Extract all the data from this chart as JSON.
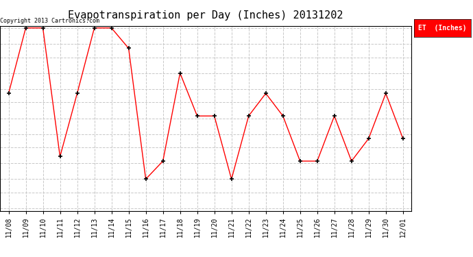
{
  "title": "Evapotranspiration per Day (Inches) 20131202",
  "copyright_text": "Copyright 2013 Cartronics.com",
  "legend_label": "ET  (Inches)",
  "x_labels": [
    "11/08",
    "11/09",
    "11/10",
    "11/11",
    "11/12",
    "11/13",
    "11/14",
    "11/15",
    "11/16",
    "11/17",
    "11/18",
    "11/19",
    "11/20",
    "11/21",
    "11/22",
    "11/23",
    "11/24",
    "11/25",
    "11/26",
    "11/27",
    "11/28",
    "11/29",
    "11/30",
    "12/01"
  ],
  "y_values": [
    0.051,
    0.08,
    0.08,
    0.023,
    0.051,
    0.08,
    0.08,
    0.071,
    0.013,
    0.021,
    0.06,
    0.041,
    0.041,
    0.013,
    0.041,
    0.051,
    0.041,
    0.021,
    0.021,
    0.041,
    0.021,
    0.031,
    0.051,
    0.031
  ],
  "line_color": "#ff0000",
  "marker": "+",
  "marker_color": "#000000",
  "bg_color": "#ffffff",
  "plot_bg_color": "#ffffff",
  "grid_color": "#c8c8c8",
  "y_min": 0.0,
  "y_max": 0.08,
  "y_ticks": [
    0.0,
    0.007,
    0.013,
    0.02,
    0.027,
    0.033,
    0.04,
    0.047,
    0.053,
    0.06,
    0.067,
    0.073,
    0.08
  ],
  "title_fontsize": 11,
  "legend_bg": "#ff0000",
  "legend_text_color": "#ffffff"
}
